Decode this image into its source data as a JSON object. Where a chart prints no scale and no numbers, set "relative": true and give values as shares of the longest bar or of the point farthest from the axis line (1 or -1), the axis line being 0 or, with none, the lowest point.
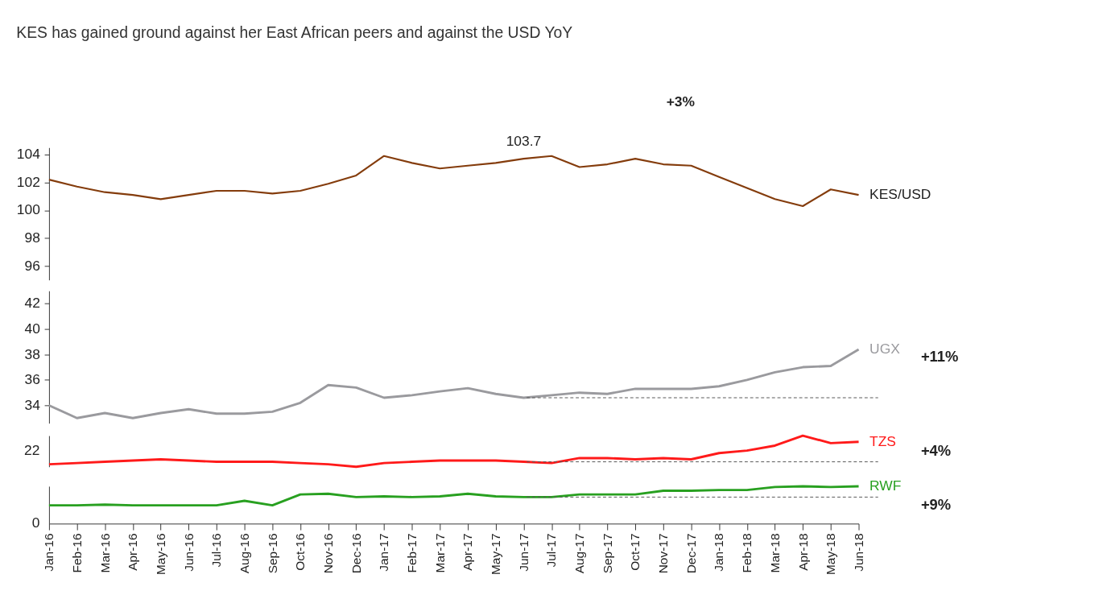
{
  "chart_data": [
    {
      "type": "line",
      "title": "KES has gained ground against her East African peers and against the USD YoY",
      "categories": [
        "Jan-16",
        "Feb-16",
        "Mar-16",
        "Apr-16",
        "May-16",
        "Jun-16",
        "Jul-16",
        "Aug-16",
        "Sep-16",
        "Oct-16",
        "Nov-16",
        "Dec-16",
        "Jan-17",
        "Feb-17",
        "Mar-17",
        "Apr-17",
        "May-17",
        "Jun-17",
        "Jul-17",
        "Aug-17",
        "Sep-17",
        "Oct-17",
        "Nov-17",
        "Dec-17",
        "Jan-18",
        "Feb-18",
        "Mar-18",
        "Apr-18",
        "May-18",
        "Jun-18"
      ],
      "series": [
        {
          "name": "KES/USD",
          "color": "#843c0c",
          "values": [
            102.2,
            101.7,
            101.3,
            101.1,
            100.8,
            101.1,
            101.4,
            101.4,
            101.2,
            101.4,
            101.9,
            102.5,
            103.9,
            103.4,
            103.0,
            103.2,
            103.4,
            103.7,
            103.9,
            103.1,
            103.3,
            103.7,
            103.3,
            103.2,
            102.4,
            101.6,
            100.8,
            100.3,
            101.5,
            101.1
          ]
        }
      ],
      "ylim": [
        95,
        104.5
      ],
      "yticks": [
        96,
        98,
        100,
        102,
        104
      ],
      "grid": false,
      "legend": false,
      "tick_labels": "y",
      "annotations": [
        {
          "text": "103.7",
          "x": "Jun-17",
          "y": 103.7
        },
        "+3%"
      ]
    },
    {
      "type": "line",
      "categories": [
        "Jan-16",
        "Feb-16",
        "Mar-16",
        "Apr-16",
        "May-16",
        "Jun-16",
        "Jul-16",
        "Aug-16",
        "Sep-16",
        "Oct-16",
        "Nov-16",
        "Dec-16",
        "Jan-17",
        "Feb-17",
        "Mar-17",
        "Apr-17",
        "May-17",
        "Jun-17",
        "Jul-17",
        "Aug-17",
        "Sep-17",
        "Oct-17",
        "Nov-17",
        "Dec-17",
        "Jan-18",
        "Feb-18",
        "Mar-18",
        "Apr-18",
        "May-18",
        "Jun-18"
      ],
      "series": [
        {
          "name": "UGX",
          "color": "#9a9a9e",
          "values": [
            34.0,
            33.0,
            33.4,
            33.0,
            33.4,
            33.7,
            33.35,
            33.35,
            33.5,
            34.2,
            35.6,
            35.4,
            34.6,
            34.8,
            35.1,
            35.35,
            34.9,
            34.6,
            34.8,
            35.0,
            34.9,
            35.3,
            35.3,
            35.3,
            35.5,
            36.0,
            36.6,
            37.0,
            37.1,
            38.4
          ]
        }
      ],
      "ylim": [
        32.6,
        43
      ],
      "yticks": [
        34,
        36,
        38,
        40,
        42
      ],
      "grid": false,
      "legend": false,
      "tick_labels": "y",
      "ref_lines": [
        {
          "axis": "y",
          "value": 34.6,
          "color": "#555555",
          "line_style": "dashed"
        }
      ],
      "annotations": [
        "+11%"
      ]
    },
    {
      "type": "line",
      "relative": true,
      "categories": [
        "Jan-16",
        "Feb-16",
        "Mar-16",
        "Apr-16",
        "May-16",
        "Jun-16",
        "Jul-16",
        "Aug-16",
        "Sep-16",
        "Oct-16",
        "Nov-16",
        "Dec-16",
        "Jan-17",
        "Feb-17",
        "Mar-17",
        "Apr-17",
        "May-17",
        "Jun-17",
        "Jul-17",
        "Aug-17",
        "Sep-17",
        "Oct-17",
        "Nov-17",
        "Dec-17",
        "Jan-18",
        "Feb-18",
        "Mar-18",
        "Apr-18",
        "May-18",
        "Jun-18"
      ],
      "series": [
        {
          "name": "TZS",
          "color": "#ff1a1a",
          "values": [
            0.08,
            0.12,
            0.16,
            0.2,
            0.24,
            0.2,
            0.16,
            0.16,
            0.16,
            0.12,
            0.08,
            0,
            0.12,
            0.16,
            0.2,
            0.2,
            0.2,
            0.16,
            0.12,
            0.28,
            0.28,
            0.24,
            0.28,
            0.24,
            0.44,
            0.52,
            0.68,
            1,
            0.76,
            0.8
          ]
        }
      ],
      "grid": false,
      "legend": false,
      "tick_labels": false,
      "ref_lines": [
        {
          "axis": "y",
          "value": 0.16,
          "color": "#555555",
          "line_style": "dashed"
        }
      ],
      "annotations": [
        {
          "text": "22"
        },
        "+4%"
      ]
    },
    {
      "type": "line",
      "relative": true,
      "categories": [
        "Jan-16",
        "Feb-16",
        "Mar-16",
        "Apr-16",
        "May-16",
        "Jun-16",
        "Jul-16",
        "Aug-16",
        "Sep-16",
        "Oct-16",
        "Nov-16",
        "Dec-16",
        "Jan-17",
        "Feb-17",
        "Mar-17",
        "Apr-17",
        "May-17",
        "Jun-17",
        "Jul-17",
        "Aug-17",
        "Sep-17",
        "Oct-17",
        "Nov-17",
        "Dec-17",
        "Jan-18",
        "Feb-18",
        "Mar-18",
        "Apr-18",
        "May-18",
        "Jun-18"
      ],
      "series": [
        {
          "name": "RWF",
          "color": "#28a020",
          "values": [
            0.49,
            0.49,
            0.51,
            0.49,
            0.49,
            0.49,
            0.49,
            0.61,
            0.49,
            0.78,
            0.8,
            0.71,
            0.73,
            0.71,
            0.73,
            0.8,
            0.73,
            0.71,
            0.71,
            0.78,
            0.78,
            0.78,
            0.88,
            0.88,
            0.9,
            0.9,
            0.98,
            1,
            0.98,
            1
          ]
        }
      ],
      "grid": false,
      "legend": false,
      "tick_labels": "x",
      "ref_lines": [
        {
          "axis": "y",
          "value": 0.71,
          "color": "#555555",
          "line_style": "dashed"
        }
      ],
      "annotations": [
        {
          "text": "0"
        },
        "+9%"
      ]
    }
  ]
}
